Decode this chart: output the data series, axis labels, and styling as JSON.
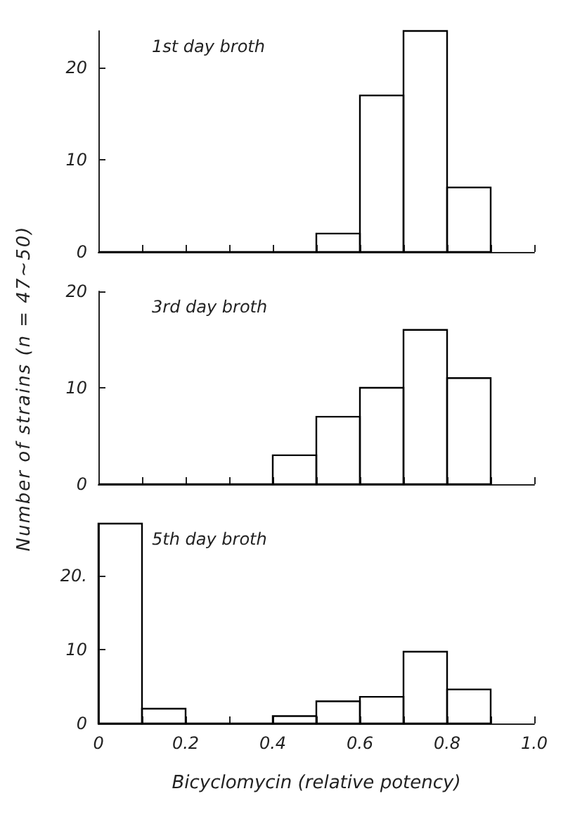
{
  "chart_data": [
    {
      "type": "histogram",
      "title": "1st day broth",
      "bins": [
        0,
        0.1,
        0.2,
        0.3,
        0.4,
        0.5,
        0.6,
        0.7,
        0.8,
        0.9
      ],
      "values": [
        0,
        0,
        0,
        0,
        0,
        2,
        17,
        24,
        7
      ],
      "color": "#000000",
      "xlim": [
        0,
        1.0
      ],
      "ylim": [
        0,
        24
      ],
      "xticks": [
        {
          "value": 0,
          "label": null
        },
        {
          "value": 0.1,
          "label": null
        },
        {
          "value": 0.2,
          "label": null
        },
        {
          "value": 0.3,
          "label": null
        },
        {
          "value": 0.4,
          "label": null
        },
        {
          "value": 0.5,
          "label": null
        },
        {
          "value": 0.6,
          "label": null
        },
        {
          "value": 0.7,
          "label": null
        },
        {
          "value": 0.8,
          "label": null
        },
        {
          "value": 0.9,
          "label": null
        },
        {
          "value": 1.0,
          "label": null
        }
      ],
      "yticks": [
        0,
        10,
        20
      ],
      "tick_labels": "y",
      "grid": false
    },
    {
      "type": "histogram",
      "title": "3rd day broth",
      "ylabel": "Number of strains (n = 47∼50)",
      "bins": [
        0,
        0.1,
        0.2,
        0.3,
        0.4,
        0.5,
        0.6,
        0.7,
        0.8,
        0.9
      ],
      "values": [
        0,
        0,
        0,
        0,
        3,
        7,
        10,
        16,
        11
      ],
      "color": "#000000",
      "xlim": [
        0,
        1.0
      ],
      "ylim": [
        0,
        20
      ],
      "xticks": [
        {
          "value": 0,
          "label": null
        },
        {
          "value": 0.1,
          "label": null
        },
        {
          "value": 0.2,
          "label": null
        },
        {
          "value": 0.3,
          "label": null
        },
        {
          "value": 0.4,
          "label": null
        },
        {
          "value": 0.5,
          "label": null
        },
        {
          "value": 0.6,
          "label": null
        },
        {
          "value": 0.7,
          "label": null
        },
        {
          "value": 0.8,
          "label": null
        },
        {
          "value": 0.9,
          "label": null
        },
        {
          "value": 1.0,
          "label": null
        }
      ],
      "yticks": [
        0,
        10,
        20
      ],
      "tick_labels": "y",
      "grid": false
    },
    {
      "type": "histogram",
      "title": "5th day broth",
      "xlabel": "Bicyclomycin (relative potency)",
      "bins": [
        0,
        0.1,
        0.2,
        0.3,
        0.4,
        0.5,
        0.6,
        0.7,
        0.8,
        0.9
      ],
      "values": [
        27,
        2,
        0,
        0,
        1,
        3,
        3.6,
        9.7,
        4.6
      ],
      "color": "#000000",
      "xlim": [
        0,
        1.0
      ],
      "ylim": [
        0,
        27
      ],
      "xticks": [
        {
          "value": 0,
          "label": "0"
        },
        {
          "value": 0.1,
          "label": null
        },
        {
          "value": 0.2,
          "label": "0.2"
        },
        {
          "value": 0.3,
          "label": null
        },
        {
          "value": 0.4,
          "label": "0.4"
        },
        {
          "value": 0.5,
          "label": null
        },
        {
          "value": 0.6,
          "label": "0.6"
        },
        {
          "value": 0.7,
          "label": null
        },
        {
          "value": 0.8,
          "label": "0.8"
        },
        {
          "value": 0.9,
          "label": null
        },
        {
          "value": 1.0,
          "label": "1.0"
        }
      ],
      "yticks": [
        0,
        10,
        {
          "value": 20,
          "label": "20."
        }
      ],
      "grid": false
    }
  ]
}
